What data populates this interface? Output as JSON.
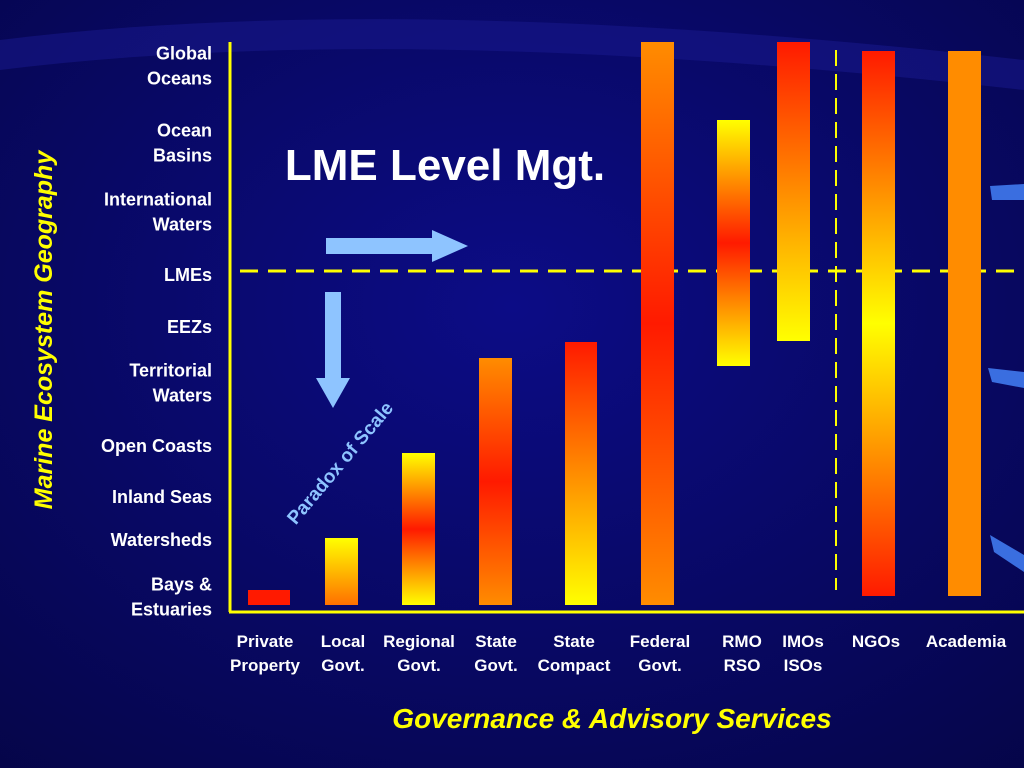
{
  "title": "LME Level Mgt.",
  "y_axis_title": "Marine Ecosystem Geography",
  "x_axis_title": "Governance & Advisory Services",
  "annotation": "Paradox of Scale",
  "levels": [
    [
      "Global",
      "Oceans"
    ],
    [
      "Ocean",
      "Basins"
    ],
    [
      "International",
      "Waters"
    ],
    [
      "LMEs"
    ],
    [
      "EEZs"
    ],
    [
      "Territorial",
      "Waters"
    ],
    [
      "Open Coasts"
    ],
    [
      "Inland Seas"
    ],
    [
      "Watersheds"
    ],
    [
      "Bays &",
      "Estuaries"
    ]
  ],
  "categories": [
    [
      "Private",
      "Property"
    ],
    [
      "Local",
      "Govt."
    ],
    [
      "Regional",
      "Govt."
    ],
    [
      "State",
      "Govt."
    ],
    [
      "State",
      "Compact"
    ],
    [
      "Federal",
      "Govt."
    ],
    [
      "RMO",
      "RSO"
    ],
    [
      "IMOs",
      "ISOs"
    ],
    [
      "NGOs"
    ],
    [
      "Academia"
    ]
  ]
}
